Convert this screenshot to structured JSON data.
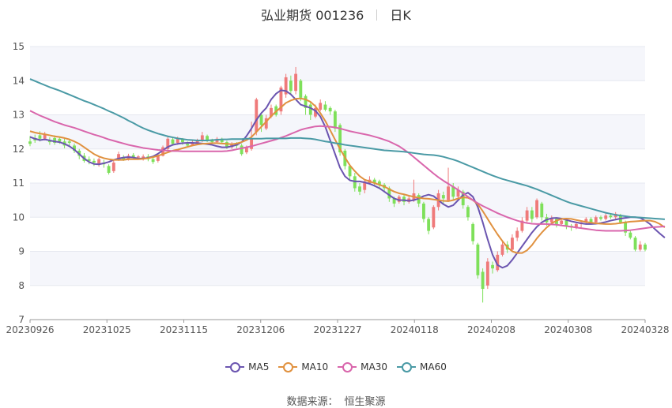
{
  "title": {
    "name": "弘业期货 001236",
    "period": "日K"
  },
  "source": {
    "label": "数据来源：",
    "value": "恒生聚源"
  },
  "chart_data": {
    "type": "candlestick",
    "ylim": [
      7,
      15
    ],
    "yticks": [
      7,
      8,
      9,
      10,
      11,
      12,
      13,
      14,
      15
    ],
    "grid": true,
    "legend_position": "bottom",
    "up_color": "#ef7a7a",
    "down_color": "#7ee05a",
    "x_labels": [
      "20230926",
      "20231025",
      "20231115",
      "20231206",
      "20231227",
      "20240118",
      "20240208",
      "20240308",
      "20240328"
    ],
    "candles": [
      [
        12.22,
        12.15,
        12.38,
        12.08
      ],
      [
        12.32,
        12.25,
        12.42,
        12.18
      ],
      [
        12.4,
        12.3,
        12.52,
        12.22
      ],
      [
        12.3,
        12.42,
        12.5,
        12.25
      ],
      [
        12.26,
        12.2,
        12.34,
        12.12
      ],
      [
        12.32,
        12.18,
        12.4,
        12.12
      ],
      [
        12.3,
        12.22,
        12.36,
        12.15
      ],
      [
        12.22,
        12.1,
        12.3,
        12.02
      ],
      [
        12.22,
        12.18,
        12.3,
        12.1
      ],
      [
        12.1,
        11.95,
        12.16,
        11.88
      ],
      [
        11.95,
        11.8,
        12.0,
        11.7
      ],
      [
        11.8,
        11.65,
        11.88,
        11.6
      ],
      [
        11.7,
        11.65,
        11.78,
        11.55
      ],
      [
        11.65,
        11.6,
        11.72,
        11.5
      ],
      [
        11.55,
        11.7,
        11.75,
        11.48
      ],
      [
        11.6,
        11.55,
        11.68,
        11.45
      ],
      [
        11.5,
        11.3,
        11.55,
        11.25
      ],
      [
        11.35,
        11.6,
        11.66,
        11.3
      ],
      [
        11.7,
        11.85,
        11.92,
        11.65
      ],
      [
        11.75,
        11.7,
        11.82,
        11.65
      ],
      [
        11.7,
        11.8,
        11.86,
        11.66
      ],
      [
        11.82,
        11.75,
        11.88,
        11.7
      ],
      [
        11.75,
        11.78,
        11.82,
        11.7
      ],
      [
        11.7,
        11.78,
        11.84,
        11.66
      ],
      [
        11.78,
        11.7,
        11.85,
        11.64
      ],
      [
        11.7,
        11.62,
        11.76,
        11.56
      ],
      [
        11.65,
        11.8,
        11.85,
        11.6
      ],
      [
        11.8,
        12.05,
        12.1,
        11.78
      ],
      [
        12.0,
        12.3,
        12.35,
        11.95
      ],
      [
        12.28,
        12.15,
        12.33,
        12.1
      ],
      [
        12.18,
        12.3,
        12.36,
        12.12
      ],
      [
        12.28,
        12.2,
        12.32,
        12.12
      ],
      [
        12.15,
        12.1,
        12.22,
        12.05
      ],
      [
        12.12,
        12.18,
        12.26,
        12.08
      ],
      [
        12.18,
        12.25,
        12.3,
        12.12
      ],
      [
        12.25,
        12.4,
        12.5,
        12.2
      ],
      [
        12.38,
        12.25,
        12.42,
        12.2
      ],
      [
        12.25,
        12.2,
        12.3,
        12.15
      ],
      [
        12.2,
        12.3,
        12.35,
        12.15
      ],
      [
        12.28,
        12.2,
        12.33,
        12.15
      ],
      [
        12.2,
        12.05,
        12.24,
        12.0
      ],
      [
        12.05,
        12.15,
        12.2,
        12.0
      ],
      [
        12.12,
        12.1,
        12.2,
        12.02
      ],
      [
        12.1,
        11.85,
        12.15,
        11.8
      ],
      [
        11.9,
        12.05,
        12.1,
        11.85
      ],
      [
        12.0,
        12.3,
        12.8,
        11.95
      ],
      [
        12.5,
        13.45,
        13.5,
        12.4
      ],
      [
        13.0,
        12.7,
        13.05,
        12.5
      ],
      [
        12.6,
        12.9,
        13.0,
        12.55
      ],
      [
        12.95,
        13.2,
        13.3,
        12.9
      ],
      [
        13.25,
        13.0,
        13.3,
        12.95
      ],
      [
        13.1,
        13.8,
        13.85,
        13.0
      ],
      [
        13.6,
        14.1,
        14.2,
        13.5
      ],
      [
        14.0,
        13.7,
        14.15,
        13.6
      ],
      [
        13.7,
        14.2,
        14.4,
        13.6
      ],
      [
        14.0,
        13.5,
        14.05,
        13.4
      ],
      [
        13.55,
        13.2,
        13.6,
        13.0
      ],
      [
        13.3,
        13.0,
        13.4,
        12.85
      ],
      [
        12.95,
        13.2,
        13.3,
        12.9
      ],
      [
        13.15,
        13.35,
        13.45,
        13.1
      ],
      [
        13.3,
        13.15,
        13.4,
        13.1
      ],
      [
        13.2,
        13.1,
        13.25,
        13.0
      ],
      [
        13.1,
        12.6,
        13.15,
        12.5
      ],
      [
        12.7,
        11.9,
        12.75,
        11.8
      ],
      [
        11.95,
        11.5,
        12.0,
        11.4
      ],
      [
        11.5,
        11.2,
        11.55,
        11.1
      ],
      [
        11.2,
        10.85,
        11.3,
        10.75
      ],
      [
        10.9,
        10.75,
        11.0,
        10.65
      ],
      [
        10.8,
        11.05,
        11.1,
        10.7
      ],
      [
        11.0,
        11.1,
        11.2,
        10.95
      ],
      [
        11.1,
        11.0,
        11.15,
        10.9
      ],
      [
        11.05,
        10.95,
        11.1,
        10.85
      ],
      [
        10.95,
        10.85,
        11.0,
        10.75
      ],
      [
        10.85,
        10.55,
        10.9,
        10.45
      ],
      [
        10.55,
        10.4,
        10.6,
        10.3
      ],
      [
        10.45,
        10.6,
        10.65,
        10.4
      ],
      [
        10.6,
        10.45,
        10.65,
        10.35
      ],
      [
        10.45,
        10.55,
        10.65,
        10.4
      ],
      [
        10.5,
        10.7,
        11.1,
        10.45
      ],
      [
        10.65,
        10.4,
        10.7,
        10.3
      ],
      [
        10.4,
        9.95,
        10.45,
        9.85
      ],
      [
        9.95,
        9.6,
        10.0,
        9.5
      ],
      [
        9.7,
        10.3,
        10.35,
        9.65
      ],
      [
        10.3,
        10.7,
        10.8,
        10.2
      ],
      [
        10.65,
        10.55,
        10.75,
        10.4
      ],
      [
        10.5,
        10.9,
        11.45,
        10.45
      ],
      [
        10.9,
        10.6,
        11.0,
        10.5
      ],
      [
        10.6,
        10.8,
        10.9,
        10.5
      ],
      [
        10.75,
        10.35,
        10.8,
        10.25
      ],
      [
        10.3,
        10.0,
        10.35,
        9.9
      ],
      [
        9.8,
        9.3,
        9.85,
        9.2
      ],
      [
        9.2,
        8.3,
        9.25,
        8.2
      ],
      [
        8.4,
        7.9,
        8.5,
        7.5
      ],
      [
        8.0,
        8.7,
        8.8,
        7.9
      ],
      [
        8.6,
        8.5,
        8.7,
        8.35
      ],
      [
        8.45,
        8.9,
        9.0,
        8.4
      ],
      [
        8.9,
        9.2,
        9.3,
        8.85
      ],
      [
        9.2,
        9.05,
        9.3,
        8.95
      ],
      [
        9.05,
        9.4,
        9.5,
        9.0
      ],
      [
        9.4,
        9.6,
        9.7,
        9.3
      ],
      [
        9.6,
        9.9,
        10.0,
        9.55
      ],
      [
        9.9,
        10.2,
        10.3,
        9.85
      ],
      [
        10.2,
        9.95,
        10.3,
        9.85
      ],
      [
        10.0,
        10.5,
        10.55,
        9.95
      ],
      [
        10.4,
        10.0,
        10.45,
        9.9
      ],
      [
        10.0,
        9.85,
        10.1,
        9.75
      ],
      [
        9.85,
        9.95,
        10.05,
        9.8
      ],
      [
        9.95,
        9.8,
        10.0,
        9.7
      ],
      [
        9.8,
        9.9,
        9.95,
        9.75
      ],
      [
        9.9,
        9.75,
        9.95,
        9.65
      ],
      [
        9.75,
        9.7,
        9.8,
        9.6
      ],
      [
        9.7,
        9.8,
        9.85,
        9.65
      ],
      [
        9.8,
        9.85,
        9.9,
        9.7
      ],
      [
        9.85,
        9.95,
        10.0,
        9.8
      ],
      [
        9.95,
        9.85,
        10.0,
        9.8
      ],
      [
        9.85,
        10.0,
        10.05,
        9.8
      ],
      [
        10.0,
        9.95,
        10.05,
        9.9
      ],
      [
        9.95,
        10.05,
        10.15,
        9.9
      ],
      [
        10.05,
        10.0,
        10.1,
        9.95
      ],
      [
        10.0,
        10.1,
        10.15,
        9.95
      ],
      [
        10.05,
        9.85,
        10.1,
        9.8
      ],
      [
        9.85,
        9.55,
        9.9,
        9.45
      ],
      [
        9.55,
        9.4,
        9.6,
        9.35
      ],
      [
        9.4,
        9.05,
        9.45,
        9.0
      ],
      [
        9.05,
        9.2,
        9.3,
        9.0
      ],
      [
        9.2,
        9.05,
        9.25,
        9.0
      ]
    ],
    "series": [
      {
        "name": "MA5",
        "color": "#6b55b0",
        "values": [
          12.35,
          12.3,
          12.26,
          12.28,
          12.25,
          12.22,
          12.2,
          12.15,
          12.08,
          11.98,
          11.85,
          11.72,
          11.62,
          11.56,
          11.55,
          11.58,
          11.62,
          11.68,
          11.72,
          11.75,
          11.76,
          11.75,
          11.72,
          11.72,
          11.74,
          11.78,
          11.86,
          11.96,
          12.06,
          12.12,
          12.15,
          12.17,
          12.18,
          12.18,
          12.17,
          12.16,
          12.14,
          12.12,
          12.08,
          12.05,
          12.05,
          12.08,
          12.12,
          12.2,
          12.38,
          12.6,
          12.85,
          13.05,
          13.2,
          13.45,
          13.62,
          13.72,
          13.7,
          13.6,
          13.45,
          13.3,
          13.25,
          13.2,
          13.12,
          12.95,
          12.65,
          12.25,
          11.85,
          11.45,
          11.2,
          11.08,
          11.05,
          11.05,
          11.02,
          10.98,
          10.92,
          10.85,
          10.75,
          10.65,
          10.55,
          10.5,
          10.5,
          10.48,
          10.5,
          10.55,
          10.62,
          10.66,
          10.62,
          10.5,
          10.38,
          10.3,
          10.35,
          10.5,
          10.65,
          10.72,
          10.6,
          10.3,
          9.85,
          9.35,
          8.9,
          8.6,
          8.52,
          8.58,
          8.75,
          8.95,
          9.15,
          9.35,
          9.55,
          9.72,
          9.85,
          9.93,
          9.97,
          9.98,
          9.96,
          9.92,
          9.88,
          9.85,
          9.82,
          9.8,
          9.8,
          9.81,
          9.83,
          9.86,
          9.9,
          9.93,
          9.96,
          9.98,
          10.0,
          10.0,
          9.98,
          9.9,
          9.8,
          9.65,
          9.52,
          9.4
        ]
      },
      {
        "name": "MA10",
        "color": "#e0913f",
        "values": [
          12.52,
          12.48,
          12.45,
          12.43,
          12.4,
          12.37,
          12.35,
          12.32,
          12.28,
          12.22,
          12.15,
          12.05,
          11.95,
          11.85,
          11.78,
          11.73,
          11.7,
          11.68,
          11.68,
          11.68,
          11.7,
          11.7,
          11.7,
          11.71,
          11.73,
          11.76,
          11.8,
          11.85,
          11.9,
          11.95,
          11.98,
          12.02,
          12.06,
          12.1,
          12.13,
          12.15,
          12.16,
          12.17,
          12.17,
          12.16,
          12.15,
          12.14,
          12.16,
          12.2,
          12.26,
          12.35,
          12.5,
          12.65,
          12.8,
          12.96,
          13.1,
          13.22,
          13.35,
          13.42,
          13.47,
          13.48,
          13.45,
          13.38,
          13.25,
          13.05,
          12.82,
          12.55,
          12.27,
          12.0,
          11.75,
          11.52,
          11.35,
          11.2,
          11.1,
          11.05,
          11.0,
          10.95,
          10.9,
          10.82,
          10.75,
          10.7,
          10.67,
          10.63,
          10.6,
          10.57,
          10.55,
          10.54,
          10.52,
          10.5,
          10.48,
          10.47,
          10.5,
          10.55,
          10.58,
          10.57,
          10.5,
          10.38,
          10.18,
          9.95,
          9.72,
          9.5,
          9.3,
          9.12,
          9.0,
          8.95,
          8.95,
          9.03,
          9.18,
          9.38,
          9.55,
          9.7,
          9.82,
          9.9,
          9.95,
          9.96,
          9.95,
          9.92,
          9.89,
          9.86,
          9.84,
          9.82,
          9.81,
          9.8,
          9.8,
          9.81,
          9.83,
          9.85,
          9.87,
          9.88,
          9.89,
          9.9,
          9.9,
          9.87,
          9.8,
          9.7
        ]
      },
      {
        "name": "MA30",
        "color": "#d966ac",
        "values": [
          13.12,
          13.05,
          12.98,
          12.92,
          12.86,
          12.8,
          12.75,
          12.7,
          12.66,
          12.62,
          12.57,
          12.52,
          12.47,
          12.42,
          12.38,
          12.33,
          12.28,
          12.24,
          12.2,
          12.16,
          12.12,
          12.09,
          12.06,
          12.03,
          12.01,
          11.99,
          11.97,
          11.96,
          11.95,
          11.94,
          11.94,
          11.93,
          11.93,
          11.93,
          11.93,
          11.93,
          11.93,
          11.93,
          11.93,
          11.93,
          11.94,
          11.96,
          11.99,
          12.02,
          12.05,
          12.08,
          12.12,
          12.16,
          12.2,
          12.24,
          12.28,
          12.33,
          12.38,
          12.44,
          12.5,
          12.56,
          12.6,
          12.63,
          12.66,
          12.67,
          12.66,
          12.65,
          12.63,
          12.6,
          12.56,
          12.52,
          12.49,
          12.46,
          12.43,
          12.4,
          12.36,
          12.32,
          12.27,
          12.22,
          12.15,
          12.08,
          11.98,
          11.88,
          11.76,
          11.64,
          11.52,
          11.4,
          11.28,
          11.17,
          11.07,
          10.98,
          10.89,
          10.8,
          10.7,
          10.6,
          10.5,
          10.41,
          10.33,
          10.26,
          10.19,
          10.12,
          10.06,
          10.0,
          9.95,
          9.9,
          9.86,
          9.83,
          9.81,
          9.8,
          9.8,
          9.8,
          9.79,
          9.78,
          9.76,
          9.74,
          9.72,
          9.7,
          9.68,
          9.66,
          9.64,
          9.62,
          9.61,
          9.6,
          9.6,
          9.6,
          9.6,
          9.61,
          9.62,
          9.64,
          9.66,
          9.68,
          9.7,
          9.71,
          9.72,
          9.73
        ]
      },
      {
        "name": "MA60",
        "color": "#4a9aa5",
        "values": [
          14.05,
          13.99,
          13.93,
          13.87,
          13.81,
          13.76,
          13.71,
          13.65,
          13.59,
          13.53,
          13.47,
          13.41,
          13.36,
          13.3,
          13.24,
          13.18,
          13.11,
          13.05,
          12.98,
          12.91,
          12.83,
          12.76,
          12.68,
          12.61,
          12.55,
          12.5,
          12.45,
          12.41,
          12.37,
          12.34,
          12.31,
          12.29,
          12.27,
          12.26,
          12.25,
          12.25,
          12.25,
          12.26,
          12.27,
          12.28,
          12.28,
          12.29,
          12.29,
          12.29,
          12.3,
          12.3,
          12.3,
          12.3,
          12.31,
          12.31,
          12.31,
          12.31,
          12.31,
          12.32,
          12.32,
          12.32,
          12.31,
          12.3,
          12.28,
          12.25,
          12.22,
          12.2,
          12.17,
          12.15,
          12.12,
          12.1,
          12.08,
          12.06,
          12.04,
          12.02,
          12.0,
          11.98,
          11.96,
          11.95,
          11.94,
          11.93,
          11.92,
          11.9,
          11.88,
          11.86,
          11.84,
          11.83,
          11.82,
          11.8,
          11.77,
          11.73,
          11.69,
          11.64,
          11.58,
          11.52,
          11.46,
          11.4,
          11.34,
          11.28,
          11.22,
          11.17,
          11.12,
          11.08,
          11.04,
          11.0,
          10.96,
          10.92,
          10.87,
          10.82,
          10.76,
          10.7,
          10.64,
          10.58,
          10.52,
          10.46,
          10.41,
          10.37,
          10.33,
          10.29,
          10.25,
          10.21,
          10.17,
          10.13,
          10.1,
          10.07,
          10.05,
          10.03,
          10.01,
          10.0,
          9.99,
          9.98,
          9.97,
          9.96,
          9.95,
          9.94
        ]
      }
    ]
  }
}
